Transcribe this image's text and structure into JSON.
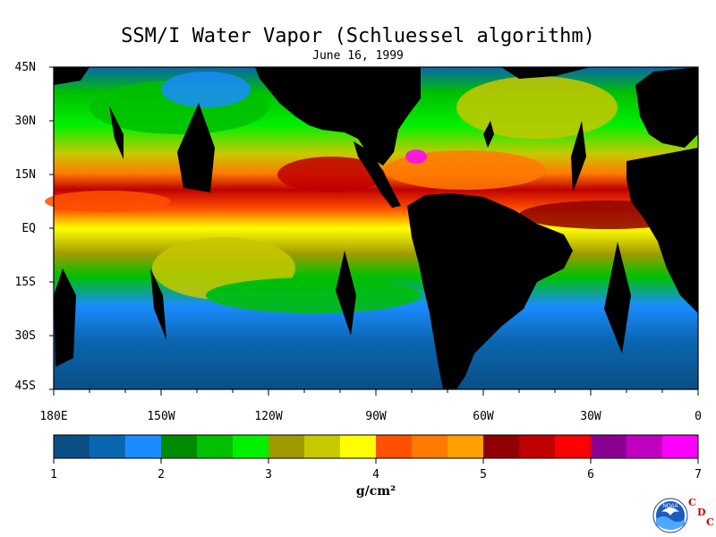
{
  "title": "SSM/I Water Vapor (Schluessel algorithm)",
  "subtitle": "June 16, 1999",
  "map": {
    "latitude_labels": [
      "45N",
      "30N",
      "15N",
      "EQ",
      "15S",
      "30S",
      "45S"
    ],
    "longitude_labels": [
      "180E",
      "150W",
      "120W",
      "90W",
      "60W",
      "30W",
      "0"
    ],
    "land_color": "#000000",
    "ocean_low_color": "#0a66b0"
  },
  "colorbar": {
    "units": "g/cm²",
    "tick_labels": [
      "1",
      "2",
      "3",
      "4",
      "5",
      "6",
      "7"
    ],
    "colors": [
      "#0a4f86",
      "#0a66b0",
      "#1a8cff",
      "#008a00",
      "#00c000",
      "#00f000",
      "#a09a00",
      "#c8c800",
      "#ffff00",
      "#ff5000",
      "#ff7a00",
      "#ffa000",
      "#900000",
      "#c00000",
      "#ff0000",
      "#8a0090",
      "#c000c0",
      "#ff00ff"
    ]
  },
  "logos": {
    "noaa": "NOAA",
    "cdc": [
      "C",
      "D",
      "C"
    ]
  }
}
